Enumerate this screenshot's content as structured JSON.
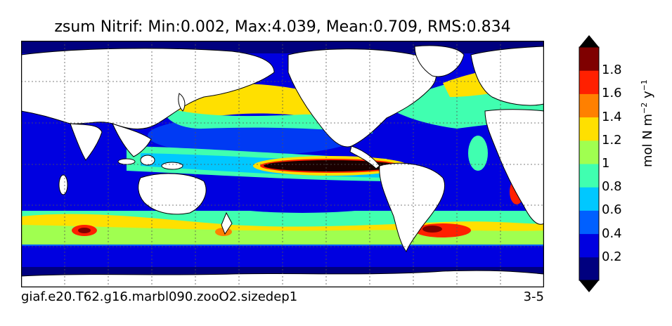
{
  "title": "zsum Nitrif: Min:0.002, Max:4.039, Mean:0.709, RMS:0.834",
  "footer": {
    "case_name": "giaf.e20.T62.g16.marbl090.zooO2.sizedep1",
    "season": "3-5"
  },
  "colorbar": {
    "label_main": "mol N m",
    "label_exp1": "−2",
    "label_mid": " y",
    "label_exp2": "−1",
    "ticks": [
      "0.2",
      "0.4",
      "0.6",
      "0.8",
      "1",
      "1.2",
      "1.4",
      "1.6",
      "1.8"
    ],
    "colors": [
      "#00007f",
      "#0000e0",
      "#0060ff",
      "#00c8ff",
      "#40ffb0",
      "#a0ff50",
      "#ffe000",
      "#ff8000",
      "#ff2000",
      "#7f0000"
    ]
  },
  "map": {
    "projection": "global lat-lon",
    "ocean_default": "#0000e0",
    "land_color": "#ffffff"
  }
}
